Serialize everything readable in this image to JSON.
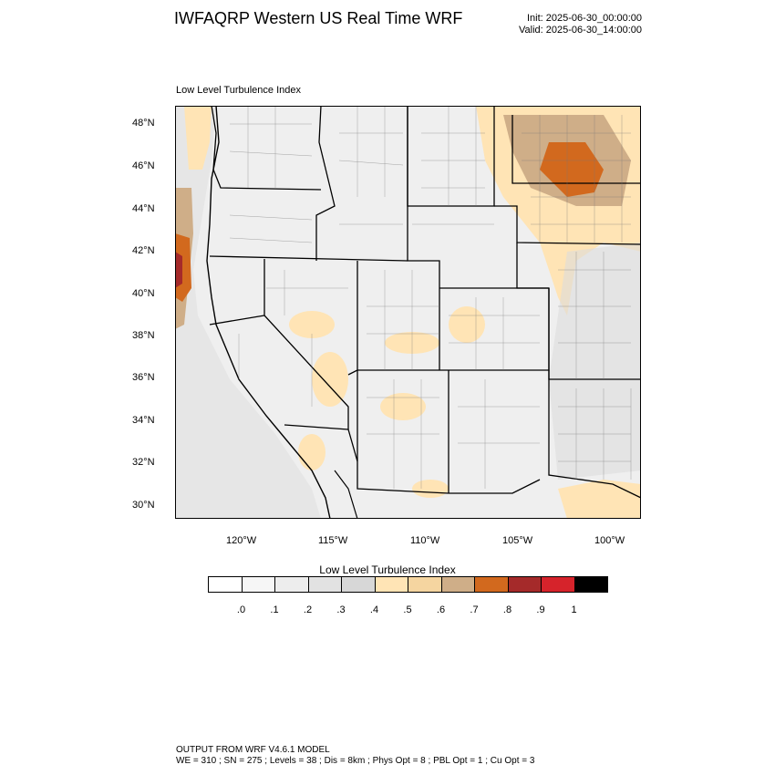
{
  "header": {
    "title": "IWFAQRP Western US Real Time WRF",
    "init": "Init: 2025-06-30_00:00:00",
    "valid": "Valid: 2025-06-30_14:00:00"
  },
  "map": {
    "subtitle": "Low Level Turbulence Index",
    "lat_ticks": [
      "48°N",
      "46°N",
      "44°N",
      "42°N",
      "40°N",
      "38°N",
      "36°N",
      "34°N",
      "32°N",
      "30°N"
    ],
    "lon_ticks": [
      "120°W",
      "115°W",
      "110°W",
      "105°W",
      "100°W"
    ],
    "field": "Low Level Turbulence Index",
    "region": "Western United States",
    "colors": {
      "background": "#efefef",
      "ocean_shade": "#e4e4e4",
      "boundary": "#000000",
      "county": "#555555"
    }
  },
  "colorbar": {
    "title": "Low Level Turbulence Index",
    "colors": [
      "#ffffff",
      "#f6f6f6",
      "#ededed",
      "#e2e2e2",
      "#d7d7d7",
      "#ffe4b5",
      "#f5d5a0",
      "#cfae88",
      "#d2691e",
      "#a52a2a",
      "#d6232b",
      "#000000"
    ],
    "labels": [
      ".0",
      ".1",
      ".2",
      ".3",
      ".4",
      ".5",
      ".6",
      ".7",
      ".8",
      ".9",
      "1"
    ]
  },
  "footer": {
    "line1": "OUTPUT FROM WRF V4.6.1 MODEL",
    "line2": "WE = 310 ; SN = 275 ; Levels = 38 ; Dis = 8km ; Phys Opt = 8 ; PBL Opt = 1 ; Cu Opt = 3"
  }
}
